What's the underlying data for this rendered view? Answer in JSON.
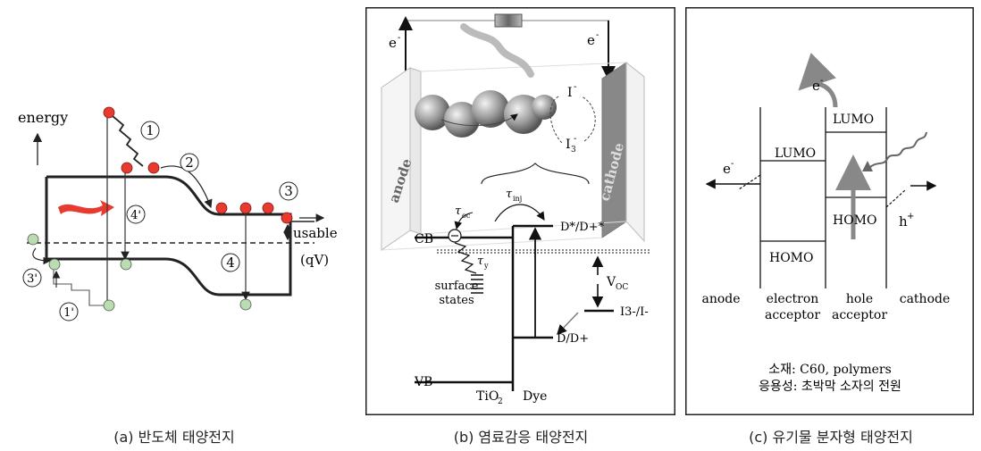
{
  "panel_a": {
    "energy_label": "energy",
    "step1": "1",
    "step2": "2",
    "step3": "3",
    "step4": "4",
    "step4p": "4'",
    "step1p": "1'",
    "step3p": "3'",
    "usable_label": "usable",
    "qv_label": "(qV)",
    "caption": "(a) 반도체 태양전지",
    "colors": {
      "electron": "#e83a2e",
      "hole": "#b9ddb0",
      "arrow": "#e83a2e"
    }
  },
  "panel_b": {
    "e_left": "e",
    "e_left_sup": "-",
    "e_right": "e",
    "e_right_sup": "-",
    "anode": "anode",
    "cathode": "cathode",
    "iodide": "I",
    "iodide_sup": "-",
    "triiodide": "I",
    "triiodide_sub": "3",
    "triiodide_sup": "-",
    "tau_oc": "τ",
    "tau_oc_sub": "oc",
    "tau_inj": "τ",
    "tau_inj_sub": "inj",
    "tau_y": "τ",
    "tau_y_sub": "y",
    "cb": "CB",
    "vb": "VB",
    "dstar": "D*/D+*",
    "dplus": "D/D+",
    "voc": "V",
    "voc_sub": "OC",
    "redox": "I3-/I-",
    "surface_states_1": "surface",
    "surface_states_2": "states",
    "tio2": "TiO",
    "tio2_sub": "2",
    "dye": "Dye",
    "caption": "(b) 염료감응 태양전지"
  },
  "panel_c": {
    "e_top": "e",
    "e_top_sup": "-",
    "e_left": "e",
    "e_left_sup": "-",
    "lumo_left": "LUMO",
    "lumo_right": "LUMO",
    "homo_left": "HOMO",
    "homo_right": "HOMO",
    "h_label": "h",
    "h_sup": "+",
    "anode": "anode",
    "electron_1": "electron",
    "electron_2": "acceptor",
    "hole_1": "hole",
    "hole_2": "acceptor",
    "cathode": "cathode",
    "material": "소재: C60, polymers",
    "application": "응용성: 초박막 소자의 전원",
    "caption": "(c) 유기물 분자형 태양전지"
  }
}
